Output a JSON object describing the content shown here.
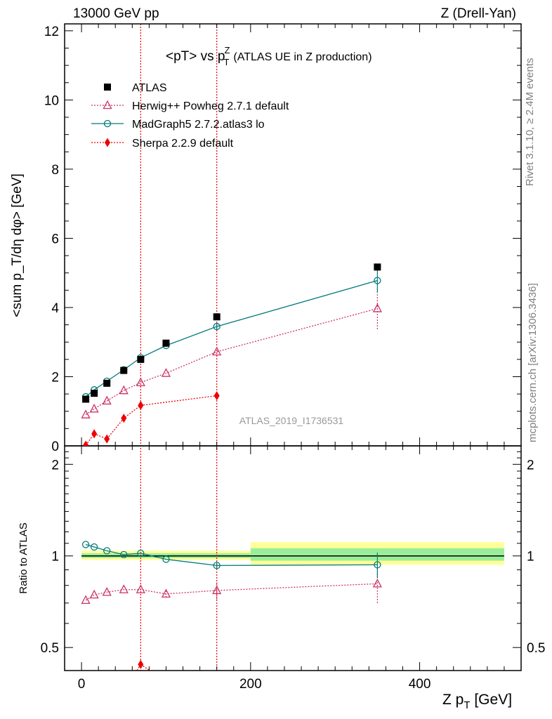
{
  "header": {
    "left": "13000 GeV pp",
    "right": "Z (Drell-Yan)"
  },
  "side_labels": {
    "rivet": "Rivet 3.1.10, ≥ 2.4M events",
    "mcplots": "mcplots.cern.ch [arXiv:1306.3436]"
  },
  "chart_data": [
    {
      "type": "line",
      "panel": "main",
      "title_main": "<pT> vs p",
      "title_sup": "Z",
      "title_sub": "T",
      "title_extra": "(ATLAS UE in Z production)",
      "ylabel": "<sum p_T/dη dφ> [GeV]",
      "ylim": [
        0,
        12.2
      ],
      "xlim": [
        -20,
        520
      ],
      "yticks": [
        0,
        2,
        4,
        6,
        8,
        10,
        12
      ],
      "watermark": "ATLAS_2019_I1736531",
      "legend_position": "top-left",
      "series": [
        {
          "name": "ATLAS",
          "color": "#000000",
          "marker": "square",
          "x": [
            5,
            15,
            30,
            50,
            70,
            100,
            160,
            350
          ],
          "y": [
            1.35,
            1.52,
            1.81,
            2.18,
            2.5,
            2.97,
            3.73,
            5.17
          ]
        },
        {
          "name": "Herwig++ Powheg 2.7.1 default",
          "color": "#cc3366",
          "marker": "triangle-open",
          "line": "dotted",
          "x": [
            5,
            15,
            30,
            50,
            70,
            100,
            160,
            350
          ],
          "y": [
            0.9,
            1.07,
            1.3,
            1.6,
            1.83,
            2.1,
            2.72,
            3.97
          ],
          "yerr": [
            0,
            0,
            0,
            0,
            0,
            0,
            0.05,
            0.6
          ]
        },
        {
          "name": "MadGraph5 2.7.2.atlas3 lo",
          "color": "#007b7b",
          "marker": "circle-open",
          "line": "solid",
          "x": [
            5,
            15,
            30,
            50,
            70,
            100,
            160,
            350
          ],
          "y": [
            1.42,
            1.62,
            1.87,
            2.2,
            2.55,
            2.9,
            3.45,
            4.78
          ],
          "yerr": [
            0,
            0,
            0,
            0,
            0.05,
            0.05,
            0.08,
            0.35
          ]
        },
        {
          "name": "Sherpa 2.2.9 default",
          "color": "#ee0000",
          "marker": "diamond",
          "line": "dotted",
          "x": [
            5,
            15,
            30,
            50,
            70,
            160
          ],
          "y": [
            0.02,
            0.35,
            0.2,
            0.8,
            1.17,
            1.45
          ],
          "yerr": [
            0,
            0,
            0,
            0.1,
            0.08,
            0.08
          ]
        }
      ]
    },
    {
      "type": "line",
      "panel": "ratio",
      "ylabel": "Ratio to ATLAS",
      "xlabel_main": "Z p",
      "xlabel_sub": "T",
      "xlabel_unit": "[GeV]",
      "ylim": [
        0.42,
        2.3
      ],
      "xlim": [
        -20,
        520
      ],
      "xticks": [
        0,
        200,
        400
      ],
      "yticks": [
        0.5,
        1,
        2
      ],
      "bands": [
        {
          "x0": 0,
          "x1": 200,
          "yellow": [
            0.97,
            1.04
          ],
          "green": [
            0.985,
            1.02
          ]
        },
        {
          "x0": 200,
          "x1": 500,
          "yellow": [
            0.935,
            1.11
          ],
          "green": [
            0.965,
            1.06
          ]
        }
      ],
      "series": [
        {
          "name": "Herwig++ Powheg 2.7.1 default",
          "x": [
            5,
            15,
            30,
            50,
            70,
            100,
            160,
            350
          ],
          "y": [
            0.715,
            0.745,
            0.76,
            0.775,
            0.775,
            0.75,
            0.77,
            0.81
          ],
          "yerr": [
            0,
            0,
            0,
            0,
            0,
            0.02,
            0.05,
            0.11
          ]
        },
        {
          "name": "MadGraph5 2.7.2.atlas3 lo",
          "x": [
            5,
            15,
            30,
            50,
            70,
            100,
            160,
            350
          ],
          "y": [
            1.09,
            1.07,
            1.04,
            1.01,
            1.02,
            0.975,
            0.93,
            0.935
          ],
          "yerr": [
            0,
            0,
            0,
            0,
            0,
            0,
            0.02,
            0.09
          ]
        },
        {
          "name": "Sherpa 2.2.9 default",
          "x": [
            70
          ],
          "y": [
            0.44
          ],
          "yerr": [
            0
          ]
        }
      ]
    }
  ]
}
